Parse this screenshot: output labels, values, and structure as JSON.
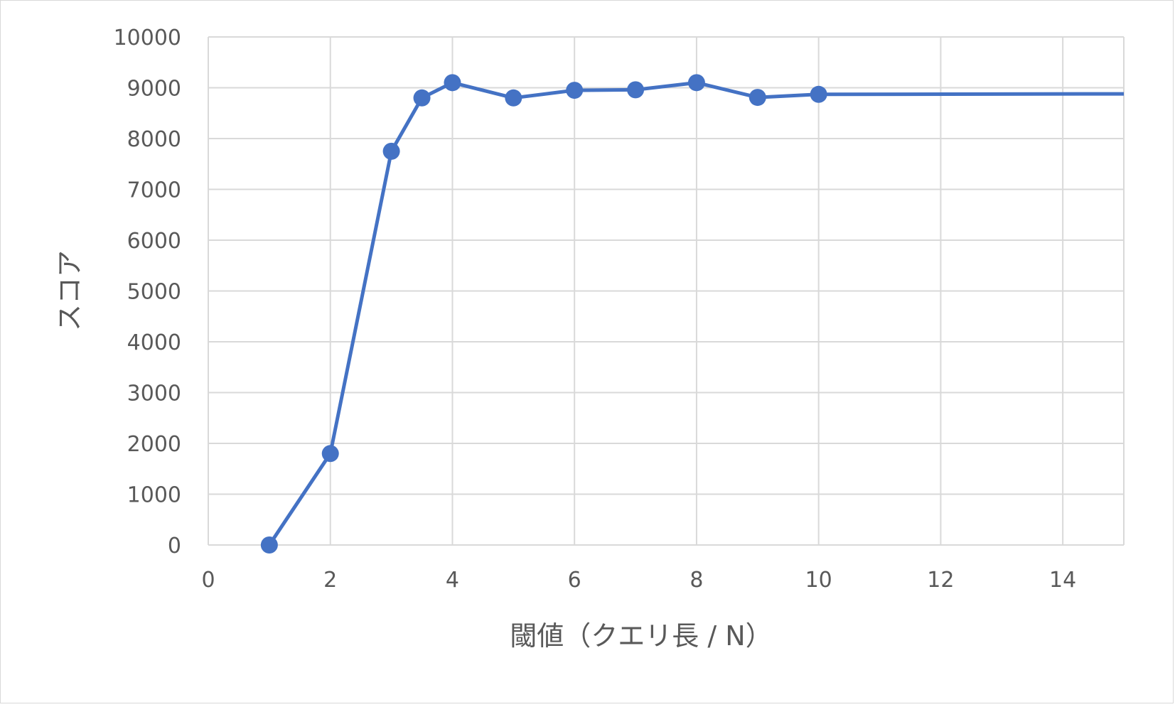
{
  "chart_data": {
    "type": "line",
    "title": "",
    "xlabel": "閾値（クエリ長 / N）",
    "ylabel": "スコア",
    "xlim": [
      0,
      15
    ],
    "ylim": [
      0,
      10000
    ],
    "x_ticks": [
      "0",
      "2",
      "4",
      "6",
      "8",
      "10",
      "12",
      "14"
    ],
    "y_ticks": [
      "0",
      "1000",
      "2000",
      "3000",
      "4000",
      "5000",
      "6000",
      "7000",
      "8000",
      "9000",
      "10000"
    ],
    "grid": true,
    "legend": "none",
    "series": [
      {
        "color": "#4472c4",
        "points": [
          {
            "x": 1,
            "y": 0
          },
          {
            "x": 2,
            "y": 1800
          },
          {
            "x": 3,
            "y": 7750
          },
          {
            "x": 3.5,
            "y": 8800
          },
          {
            "x": 4,
            "y": 9100
          },
          {
            "x": 5,
            "y": 8800
          },
          {
            "x": 6,
            "y": 8950
          },
          {
            "x": 7,
            "y": 8960
          },
          {
            "x": 8,
            "y": 9100
          },
          {
            "x": 9,
            "y": 8810
          },
          {
            "x": 10,
            "y": 8870
          }
        ],
        "extension": {
          "x": 15,
          "y": 8880
        }
      }
    ]
  }
}
